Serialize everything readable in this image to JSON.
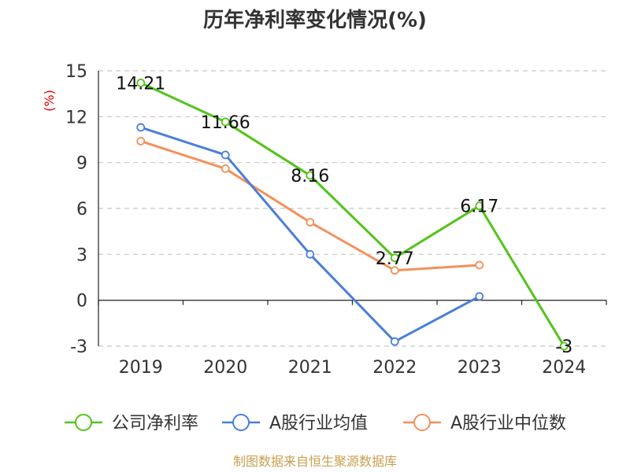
{
  "chart_data": {
    "type": "line",
    "title": "历年净利率变化情况(%)",
    "ylabel": "(%)",
    "categories": [
      "2019",
      "2020",
      "2021",
      "2022",
      "2023",
      "2024"
    ],
    "ylim": [
      -3,
      15
    ],
    "yticks": [
      15,
      12,
      9,
      6,
      3,
      0,
      -3
    ],
    "grid": true,
    "legend_placement": "bottom",
    "series": [
      {
        "name": "公司净利率",
        "color": "#52c41a",
        "values": [
          14.21,
          11.66,
          8.16,
          2.77,
          6.17,
          -3
        ],
        "labels": [
          "14.21",
          "11.66",
          "8.16",
          "2.77",
          "6.17",
          "-3"
        ]
      },
      {
        "name": "A股行业均值",
        "color": "#4a7fd9",
        "values": [
          11.3,
          9.5,
          3.0,
          -2.7,
          0.25,
          null
        ]
      },
      {
        "name": "A股行业中位数",
        "color": "#f5905a",
        "values": [
          10.4,
          8.6,
          5.1,
          1.95,
          2.3,
          null
        ]
      }
    ]
  },
  "source": "制图数据来自恒生聚源数据库"
}
